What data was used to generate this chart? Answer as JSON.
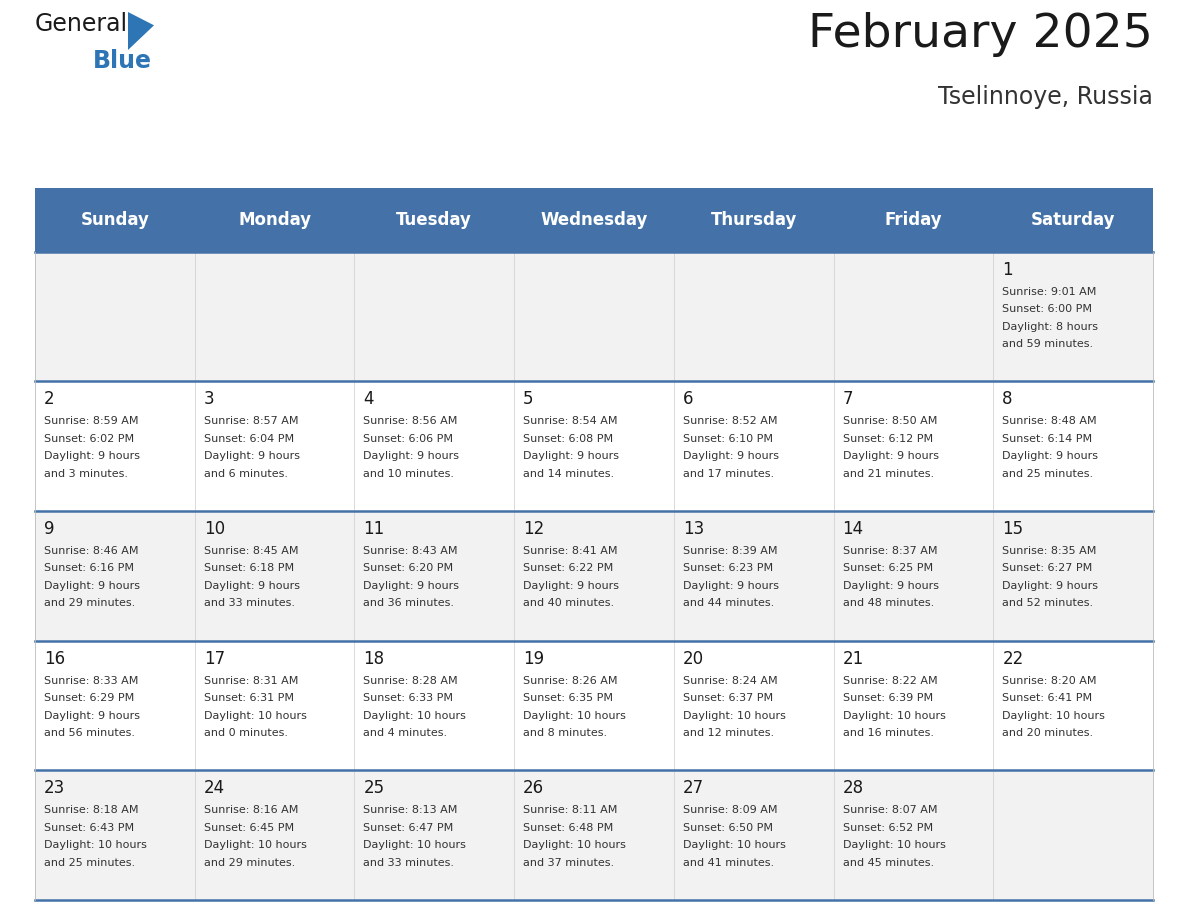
{
  "title": "February 2025",
  "subtitle": "Tselinnoye, Russia",
  "header_bg": "#4472A8",
  "header_text_color": "#FFFFFF",
  "cell_bg_odd": "#F2F2F2",
  "cell_bg_even": "#FFFFFF",
  "line_color": "#4472A8",
  "days_of_week": [
    "Sunday",
    "Monday",
    "Tuesday",
    "Wednesday",
    "Thursday",
    "Friday",
    "Saturday"
  ],
  "calendar_data": [
    [
      null,
      null,
      null,
      null,
      null,
      null,
      {
        "day": "1",
        "sunrise": "9:01 AM",
        "sunset": "6:00 PM",
        "daylight_h": "8 hours",
        "daylight_m": "59 minutes."
      }
    ],
    [
      {
        "day": "2",
        "sunrise": "8:59 AM",
        "sunset": "6:02 PM",
        "daylight_h": "9 hours",
        "daylight_m": "3 minutes."
      },
      {
        "day": "3",
        "sunrise": "8:57 AM",
        "sunset": "6:04 PM",
        "daylight_h": "9 hours",
        "daylight_m": "6 minutes."
      },
      {
        "day": "4",
        "sunrise": "8:56 AM",
        "sunset": "6:06 PM",
        "daylight_h": "9 hours",
        "daylight_m": "10 minutes."
      },
      {
        "day": "5",
        "sunrise": "8:54 AM",
        "sunset": "6:08 PM",
        "daylight_h": "9 hours",
        "daylight_m": "14 minutes."
      },
      {
        "day": "6",
        "sunrise": "8:52 AM",
        "sunset": "6:10 PM",
        "daylight_h": "9 hours",
        "daylight_m": "17 minutes."
      },
      {
        "day": "7",
        "sunrise": "8:50 AM",
        "sunset": "6:12 PM",
        "daylight_h": "9 hours",
        "daylight_m": "21 minutes."
      },
      {
        "day": "8",
        "sunrise": "8:48 AM",
        "sunset": "6:14 PM",
        "daylight_h": "9 hours",
        "daylight_m": "25 minutes."
      }
    ],
    [
      {
        "day": "9",
        "sunrise": "8:46 AM",
        "sunset": "6:16 PM",
        "daylight_h": "9 hours",
        "daylight_m": "29 minutes."
      },
      {
        "day": "10",
        "sunrise": "8:45 AM",
        "sunset": "6:18 PM",
        "daylight_h": "9 hours",
        "daylight_m": "33 minutes."
      },
      {
        "day": "11",
        "sunrise": "8:43 AM",
        "sunset": "6:20 PM",
        "daylight_h": "9 hours",
        "daylight_m": "36 minutes."
      },
      {
        "day": "12",
        "sunrise": "8:41 AM",
        "sunset": "6:22 PM",
        "daylight_h": "9 hours",
        "daylight_m": "40 minutes."
      },
      {
        "day": "13",
        "sunrise": "8:39 AM",
        "sunset": "6:23 PM",
        "daylight_h": "9 hours",
        "daylight_m": "44 minutes."
      },
      {
        "day": "14",
        "sunrise": "8:37 AM",
        "sunset": "6:25 PM",
        "daylight_h": "9 hours",
        "daylight_m": "48 minutes."
      },
      {
        "day": "15",
        "sunrise": "8:35 AM",
        "sunset": "6:27 PM",
        "daylight_h": "9 hours",
        "daylight_m": "52 minutes."
      }
    ],
    [
      {
        "day": "16",
        "sunrise": "8:33 AM",
        "sunset": "6:29 PM",
        "daylight_h": "9 hours",
        "daylight_m": "56 minutes."
      },
      {
        "day": "17",
        "sunrise": "8:31 AM",
        "sunset": "6:31 PM",
        "daylight_h": "10 hours",
        "daylight_m": "0 minutes."
      },
      {
        "day": "18",
        "sunrise": "8:28 AM",
        "sunset": "6:33 PM",
        "daylight_h": "10 hours",
        "daylight_m": "4 minutes."
      },
      {
        "day": "19",
        "sunrise": "8:26 AM",
        "sunset": "6:35 PM",
        "daylight_h": "10 hours",
        "daylight_m": "8 minutes."
      },
      {
        "day": "20",
        "sunrise": "8:24 AM",
        "sunset": "6:37 PM",
        "daylight_h": "10 hours",
        "daylight_m": "12 minutes."
      },
      {
        "day": "21",
        "sunrise": "8:22 AM",
        "sunset": "6:39 PM",
        "daylight_h": "10 hours",
        "daylight_m": "16 minutes."
      },
      {
        "day": "22",
        "sunrise": "8:20 AM",
        "sunset": "6:41 PM",
        "daylight_h": "10 hours",
        "daylight_m": "20 minutes."
      }
    ],
    [
      {
        "day": "23",
        "sunrise": "8:18 AM",
        "sunset": "6:43 PM",
        "daylight_h": "10 hours",
        "daylight_m": "25 minutes."
      },
      {
        "day": "24",
        "sunrise": "8:16 AM",
        "sunset": "6:45 PM",
        "daylight_h": "10 hours",
        "daylight_m": "29 minutes."
      },
      {
        "day": "25",
        "sunrise": "8:13 AM",
        "sunset": "6:47 PM",
        "daylight_h": "10 hours",
        "daylight_m": "33 minutes."
      },
      {
        "day": "26",
        "sunrise": "8:11 AM",
        "sunset": "6:48 PM",
        "daylight_h": "10 hours",
        "daylight_m": "37 minutes."
      },
      {
        "day": "27",
        "sunrise": "8:09 AM",
        "sunset": "6:50 PM",
        "daylight_h": "10 hours",
        "daylight_m": "41 minutes."
      },
      {
        "day": "28",
        "sunrise": "8:07 AM",
        "sunset": "6:52 PM",
        "daylight_h": "10 hours",
        "daylight_m": "45 minutes."
      },
      null
    ]
  ],
  "logo_triangle_color": "#2e75b6",
  "fig_width": 11.88,
  "fig_height": 9.18,
  "dpi": 100
}
